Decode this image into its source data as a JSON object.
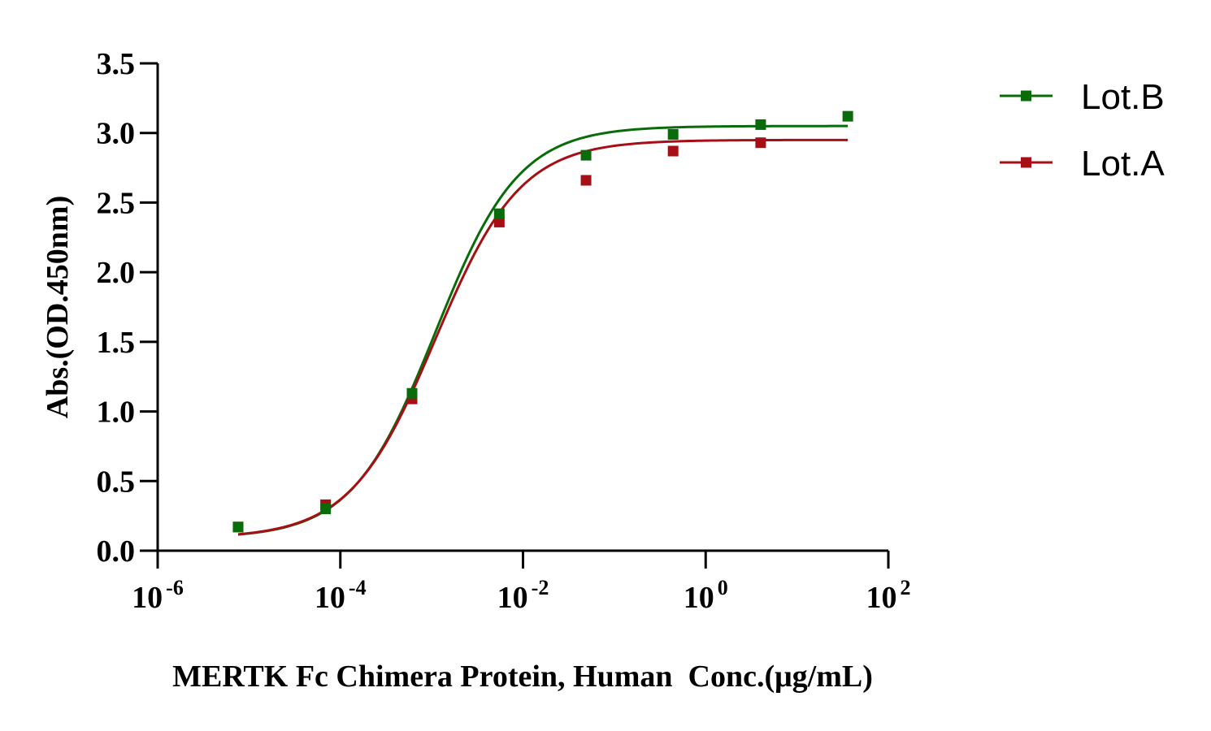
{
  "chart_data": {
    "type": "scatter",
    "xscale": "log10",
    "xlim_exp": [
      -6,
      2
    ],
    "ylim": [
      0,
      3.5
    ],
    "yticks": [
      0.0,
      0.5,
      1.0,
      1.5,
      2.0,
      2.5,
      3.0,
      3.5
    ],
    "ytick_labels": [
      "0.0",
      "0.5",
      "1.0",
      "1.5",
      "2.0",
      "2.5",
      "3.0",
      "3.5"
    ],
    "xticks": [
      {
        "exp": -6,
        "base": "10",
        "sup": "-6"
      },
      {
        "exp": -4,
        "base": "10",
        "sup": "-4"
      },
      {
        "exp": -2,
        "base": "10",
        "sup": "-2"
      },
      {
        "exp": 0,
        "base": "10",
        "sup": "0"
      },
      {
        "exp": 2,
        "base": "10",
        "sup": "2"
      }
    ],
    "xlabel": "MERTK Fc Chimera Protein, Human  Conc.(μg/mL)",
    "ylabel": "Abs.(OD.450nm)",
    "legend_position": "top-right",
    "series": [
      {
        "name": "Lot.B",
        "color": "#0a6b0a",
        "x": [
          7.6e-06,
          6.9e-05,
          0.00061,
          0.0055,
          0.049,
          0.44,
          4.0,
          36
        ],
        "y": [
          0.17,
          0.3,
          1.13,
          2.42,
          2.84,
          2.99,
          3.06,
          3.12
        ],
        "fit": {
          "bottom": 0.09,
          "top": 3.05,
          "ec50": 0.0011,
          "hill": 0.95
        }
      },
      {
        "name": "Lot.A",
        "color": "#a50f15",
        "x": [
          7.6e-06,
          6.9e-05,
          0.00061,
          0.0055,
          0.049,
          0.44,
          4.0
        ],
        "y": [
          0.17,
          0.33,
          1.09,
          2.36,
          2.66,
          2.87,
          2.93
        ],
        "fit": {
          "bottom": 0.09,
          "top": 2.95,
          "ec50": 0.0011,
          "hill": 0.93
        }
      }
    ]
  }
}
